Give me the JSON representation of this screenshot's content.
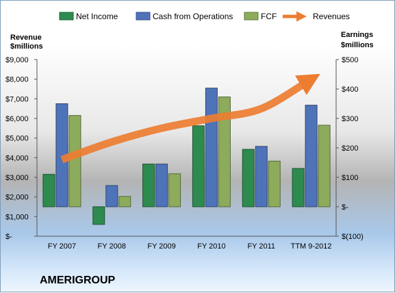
{
  "chart_data": {
    "type": "bar",
    "company": "AMERIGROUP",
    "categories": [
      "FY 2007",
      "FY 2008",
      "FY 2009",
      "FY 2010",
      "FY 2011",
      "TTM 9-2012"
    ],
    "left_axis": {
      "title_lines": [
        "Revenue",
        "$millions"
      ],
      "ticks": [
        "$-",
        "$1,000",
        "$2,000",
        "$3,000",
        "$4,000",
        "$5,000",
        "$6,000",
        "$7,000",
        "$8,000",
        "$9,000"
      ],
      "range": [
        0,
        9000
      ]
    },
    "right_axis": {
      "title_lines": [
        "Earnings",
        "$millions"
      ],
      "ticks": [
        "$(100)",
        "$-",
        "$100",
        "$200",
        "$300",
        "$400",
        "$500"
      ],
      "range": [
        -100,
        500
      ]
    },
    "series": [
      {
        "name": "Net Income",
        "axis": "right",
        "kind": "bar",
        "color": "#2e8b4f",
        "values": [
          110,
          -60,
          145,
          275,
          195,
          130
        ]
      },
      {
        "name": "Cash from Operations",
        "axis": "right",
        "kind": "bar",
        "color": "#4f73b8",
        "values": [
          350,
          72,
          145,
          403,
          205,
          345
        ]
      },
      {
        "name": "FCF",
        "axis": "right",
        "kind": "bar",
        "color": "#8cac5c",
        "values": [
          310,
          35,
          112,
          373,
          155,
          277
        ]
      },
      {
        "name": "Revenues",
        "axis": "left",
        "kind": "line",
        "color": "#ed7d31",
        "values": [
          3900,
          4800,
          5500,
          6000,
          6500,
          8000
        ]
      }
    ],
    "legend_position": "top",
    "grid": false
  }
}
